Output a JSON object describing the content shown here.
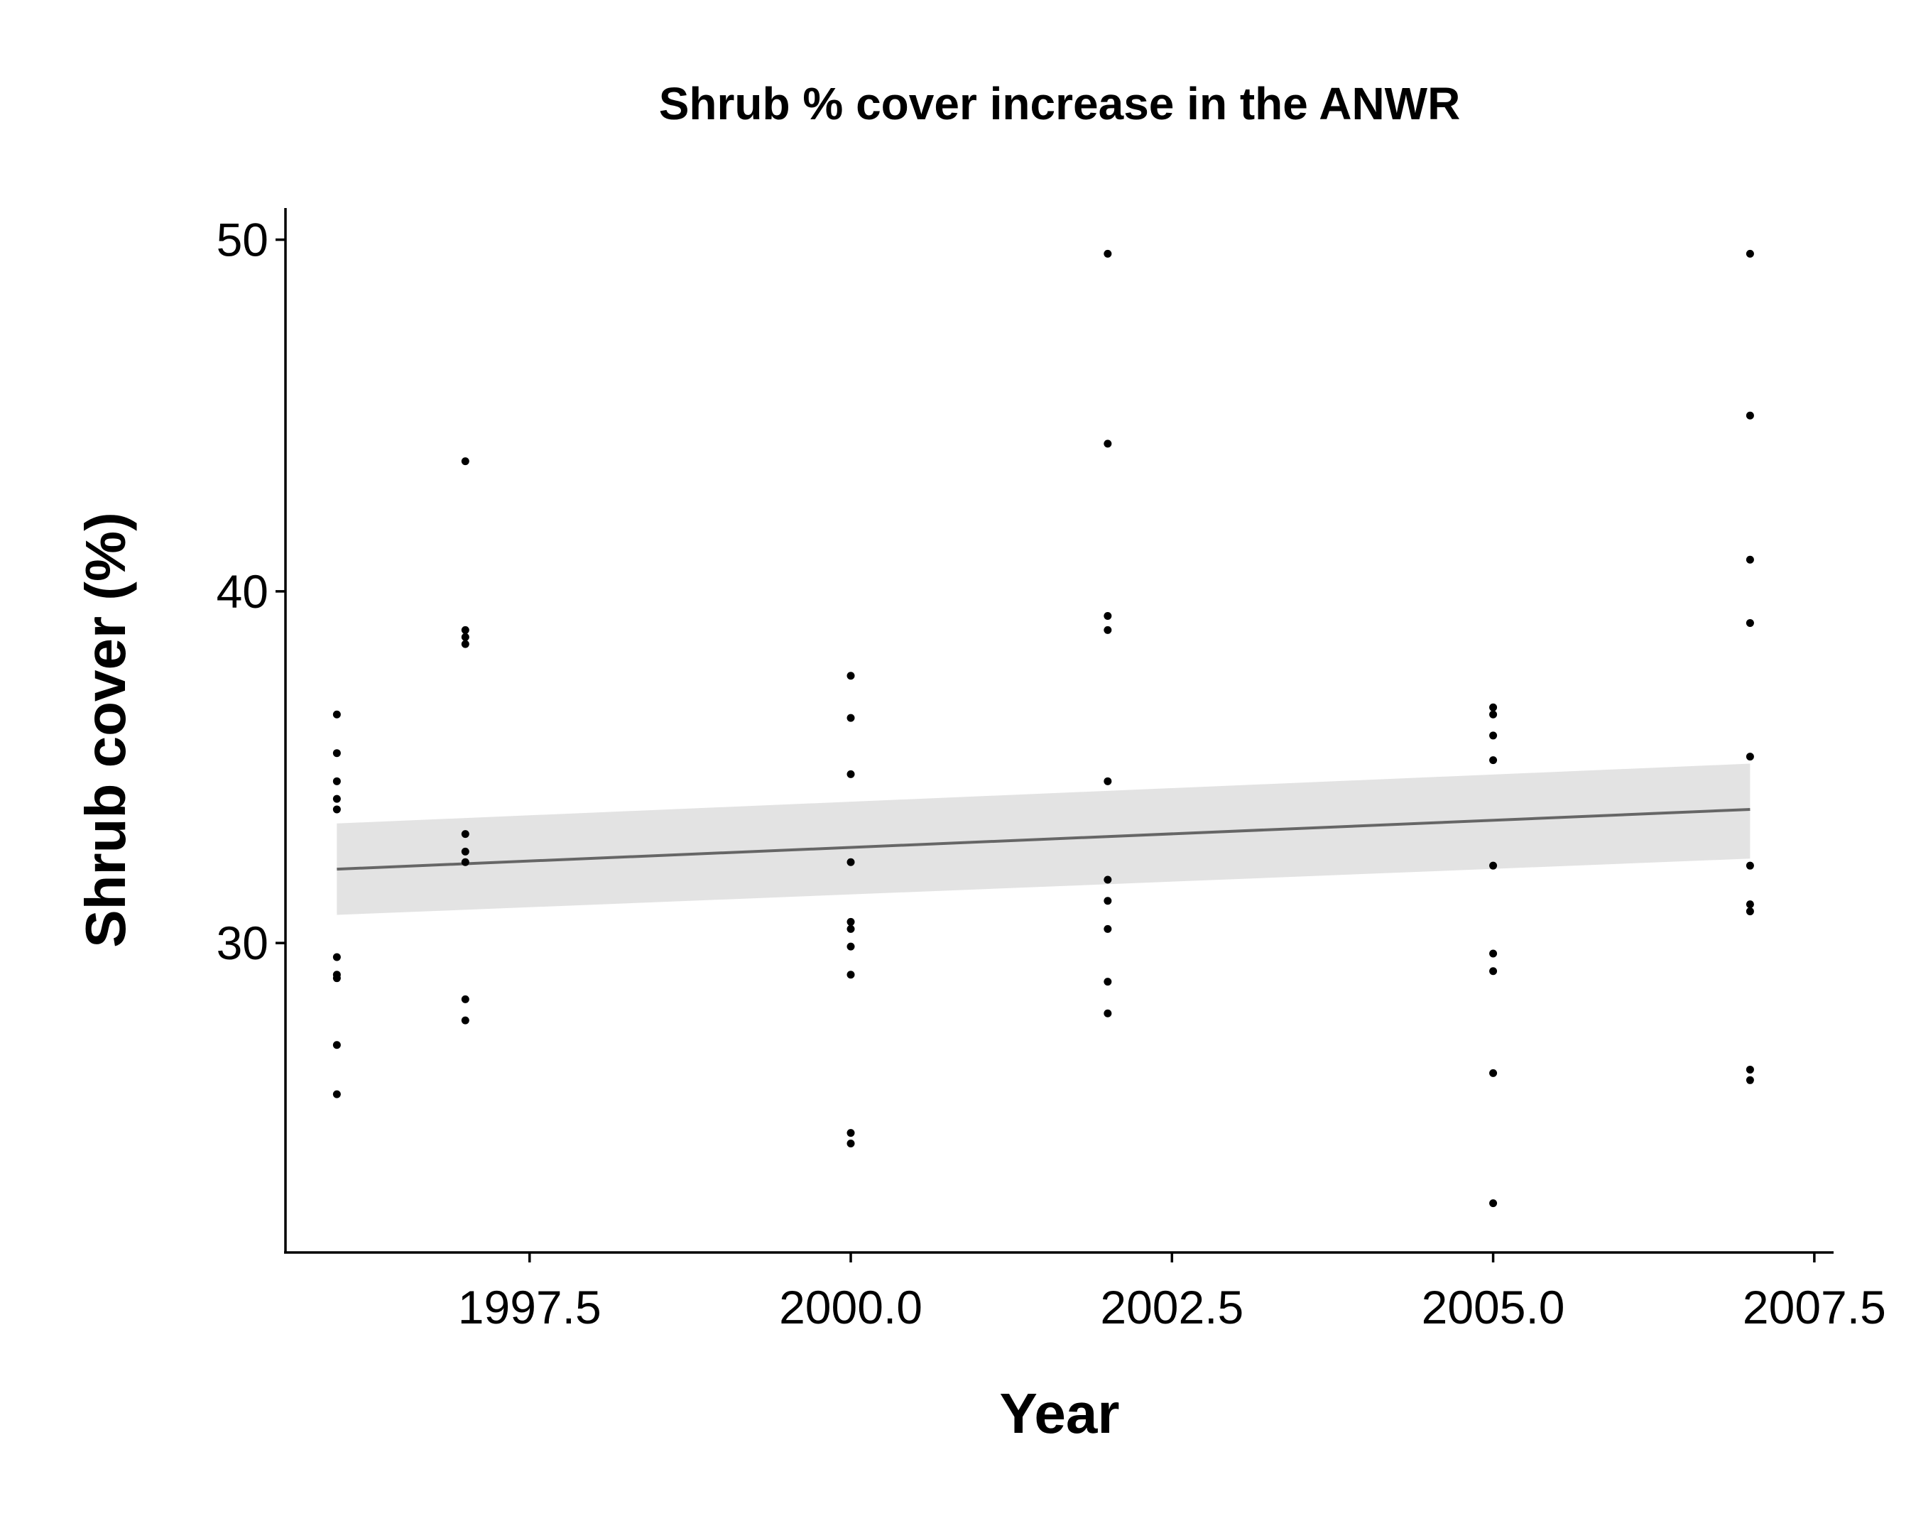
{
  "chart_data": {
    "type": "scatter",
    "title": "Shrub % cover increase in the ANWR",
    "xlabel": "Year",
    "ylabel": "Shrub cover (%)",
    "xlim": [
      1995.6,
      2007.65
    ],
    "ylim": [
      21.2,
      50.9
    ],
    "x_ticks": [
      {
        "value": 1997.5,
        "label": "1997.5"
      },
      {
        "value": 2000.0,
        "label": "2000.0"
      },
      {
        "value": 2002.5,
        "label": "2002.5"
      },
      {
        "value": 2005.0,
        "label": "2005.0"
      },
      {
        "value": 2007.5,
        "label": "2007.5"
      }
    ],
    "y_ticks": [
      {
        "value": 30,
        "label": "30"
      },
      {
        "value": 40,
        "label": "40"
      },
      {
        "value": 50,
        "label": "50"
      }
    ],
    "grid": false,
    "legend": "none",
    "colors": {
      "points": "#000000",
      "trend_line": "#666666",
      "confidence_band": "#e3e3e3",
      "axes": "#000000"
    },
    "points": [
      {
        "x": 1996,
        "y": 36.5
      },
      {
        "x": 1996,
        "y": 35.4
      },
      {
        "x": 1996,
        "y": 34.6
      },
      {
        "x": 1996,
        "y": 34.1
      },
      {
        "x": 1996,
        "y": 33.8
      },
      {
        "x": 1996,
        "y": 29.6
      },
      {
        "x": 1996,
        "y": 29.1
      },
      {
        "x": 1996,
        "y": 29.0
      },
      {
        "x": 1996,
        "y": 27.1
      },
      {
        "x": 1996,
        "y": 25.7
      },
      {
        "x": 1997,
        "y": 43.7
      },
      {
        "x": 1997,
        "y": 38.9
      },
      {
        "x": 1997,
        "y": 38.7
      },
      {
        "x": 1997,
        "y": 38.5
      },
      {
        "x": 1997,
        "y": 33.1
      },
      {
        "x": 1997,
        "y": 32.6
      },
      {
        "x": 1997,
        "y": 32.3
      },
      {
        "x": 1997,
        "y": 28.4
      },
      {
        "x": 1997,
        "y": 27.8
      },
      {
        "x": 2000,
        "y": 37.6
      },
      {
        "x": 2000,
        "y": 36.4
      },
      {
        "x": 2000,
        "y": 34.8
      },
      {
        "x": 2000,
        "y": 32.3
      },
      {
        "x": 2000,
        "y": 30.6
      },
      {
        "x": 2000,
        "y": 30.4
      },
      {
        "x": 2000,
        "y": 29.9
      },
      {
        "x": 2000,
        "y": 29.1
      },
      {
        "x": 2000,
        "y": 24.6
      },
      {
        "x": 2000,
        "y": 24.3
      },
      {
        "x": 2002,
        "y": 49.6
      },
      {
        "x": 2002,
        "y": 44.2
      },
      {
        "x": 2002,
        "y": 39.3
      },
      {
        "x": 2002,
        "y": 38.9
      },
      {
        "x": 2002,
        "y": 34.6
      },
      {
        "x": 2002,
        "y": 31.8
      },
      {
        "x": 2002,
        "y": 31.2
      },
      {
        "x": 2002,
        "y": 30.4
      },
      {
        "x": 2002,
        "y": 28.9
      },
      {
        "x": 2002,
        "y": 28.0
      },
      {
        "x": 2005,
        "y": 36.7
      },
      {
        "x": 2005,
        "y": 36.5
      },
      {
        "x": 2005,
        "y": 35.9
      },
      {
        "x": 2005,
        "y": 35.2
      },
      {
        "x": 2005,
        "y": 32.2
      },
      {
        "x": 2005,
        "y": 29.7
      },
      {
        "x": 2005,
        "y": 29.2
      },
      {
        "x": 2005,
        "y": 26.3
      },
      {
        "x": 2005,
        "y": 22.6
      },
      {
        "x": 2007,
        "y": 49.6
      },
      {
        "x": 2007,
        "y": 45.0
      },
      {
        "x": 2007,
        "y": 40.9
      },
      {
        "x": 2007,
        "y": 39.1
      },
      {
        "x": 2007,
        "y": 35.3
      },
      {
        "x": 2007,
        "y": 32.2
      },
      {
        "x": 2007,
        "y": 31.1
      },
      {
        "x": 2007,
        "y": 30.9
      },
      {
        "x": 2007,
        "y": 26.4
      },
      {
        "x": 2007,
        "y": 26.1
      }
    ],
    "trend": {
      "x": [
        1996,
        2007
      ],
      "y": [
        32.1,
        33.8
      ],
      "lower": [
        30.8,
        32.4
      ],
      "upper": [
        33.4,
        35.1
      ]
    }
  }
}
